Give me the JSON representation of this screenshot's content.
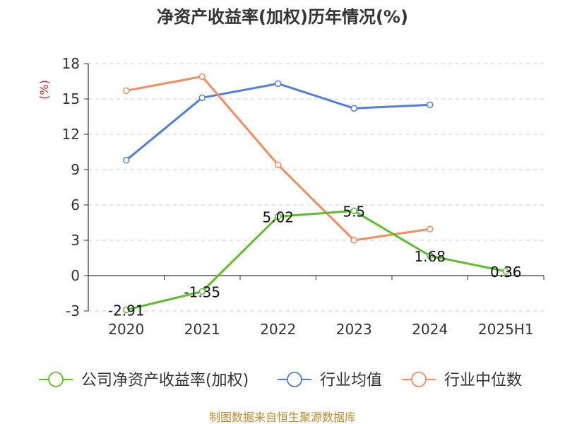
{
  "chart_data": {
    "type": "line",
    "title": "净资产收益率(加权)历年情况(%)",
    "ylabel": "(%)",
    "categories": [
      "2020",
      "2021",
      "2022",
      "2023",
      "2024",
      "2025H1"
    ],
    "yticks": [
      -3,
      0,
      3,
      6,
      9,
      12,
      15,
      18
    ],
    "ylim": [
      -3,
      18
    ],
    "grid": true,
    "legend_position": "bottom",
    "series": [
      {
        "name": "公司净资产收益率(加权)",
        "color": "#5cbf2a",
        "values": [
          -2.91,
          -1.35,
          5.02,
          5.5,
          1.68,
          0.36
        ],
        "labels": [
          "-2.91",
          "-1.35",
          "5.02",
          "5.5",
          "1.68",
          "0.36"
        ]
      },
      {
        "name": "行业均值",
        "color": "#4f7fd8",
        "values": [
          9.8,
          15.1,
          16.3,
          14.2,
          14.5,
          null
        ]
      },
      {
        "name": "行业中位数",
        "color": "#f58c5a",
        "values": [
          15.7,
          16.9,
          9.4,
          3.0,
          3.95,
          null
        ]
      }
    ]
  },
  "source": "制图数据来自恒生聚源数据库"
}
